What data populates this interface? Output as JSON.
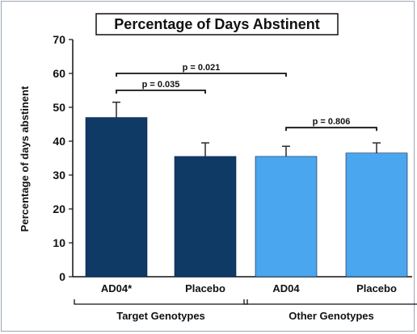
{
  "chart_data": {
    "type": "bar",
    "title": "Percentage of Days Abstinent",
    "ylabel": "Percentage of days abstinent",
    "xlabel": "",
    "ylim": [
      0,
      70
    ],
    "yticks": [
      0,
      10,
      20,
      30,
      40,
      50,
      60,
      70
    ],
    "categories": [
      "AD04*",
      "Placebo",
      "AD04",
      "Placebo"
    ],
    "values": [
      47,
      35.5,
      35.5,
      36.5
    ],
    "error_upper": [
      51.5,
      39.5,
      38.5,
      39.5
    ],
    "bar_colors": [
      "#0f3a66",
      "#0f3a66",
      "#4aa6ee",
      "#4aa6ee"
    ],
    "groups": [
      {
        "label": "Target Genotypes",
        "categories": [
          0,
          1
        ]
      },
      {
        "label": "Other Genotypes",
        "categories": [
          2,
          3
        ]
      }
    ],
    "comparisons": [
      {
        "from": 0,
        "to": 2,
        "label": "p = 0.021",
        "level": 60
      },
      {
        "from": 0,
        "to": 1,
        "label": "p = 0.035",
        "level": 55
      },
      {
        "from": 2,
        "to": 3,
        "label": "p = 0.806",
        "level": 44
      }
    ],
    "grid": false,
    "legend": "none"
  }
}
